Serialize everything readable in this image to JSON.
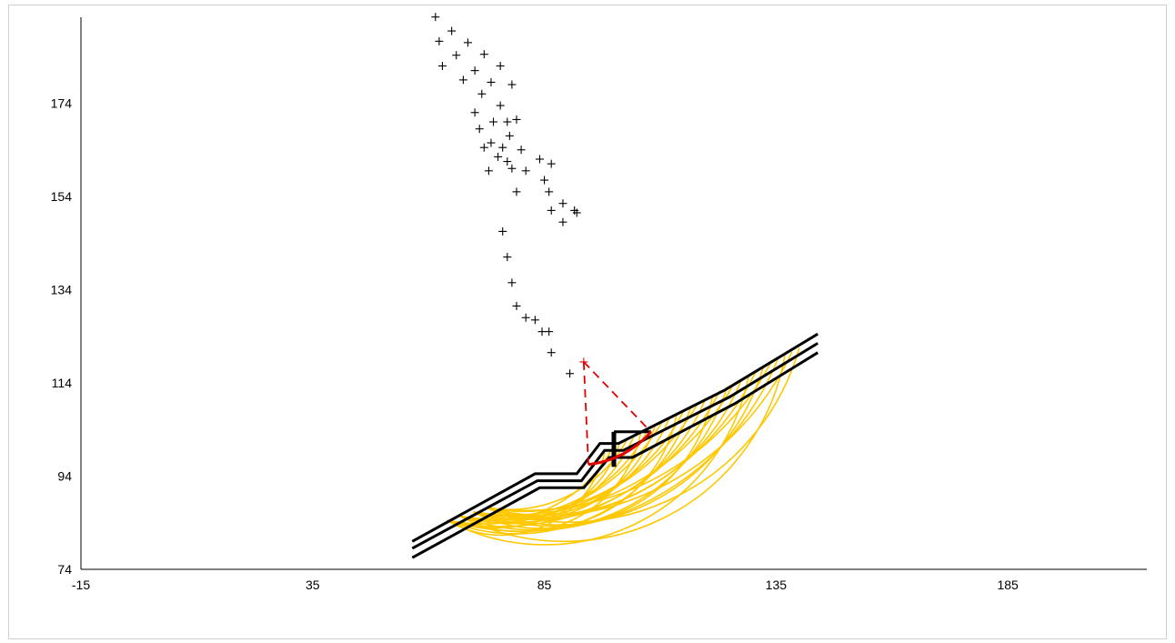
{
  "chart_data": {
    "type": "scatter",
    "title": "",
    "xlabel": "",
    "ylabel": "",
    "xlim": [
      -15,
      215
    ],
    "ylim": [
      74,
      194
    ],
    "x_ticks": [
      -15,
      35,
      85,
      135,
      185
    ],
    "x_tick_labels": [
      "-15",
      "35",
      "85",
      "135",
      "185"
    ],
    "y_ticks": [
      74,
      94,
      114,
      134,
      154,
      174
    ],
    "y_tick_labels": [
      "74",
      "94",
      "114",
      "134",
      "154",
      "174"
    ],
    "grid": false,
    "legend": "none",
    "colors": {
      "axis": "#000000",
      "slope_profile": "#000000",
      "trial_surfaces": "#FFC800",
      "critical_surface": "#E00000",
      "critical_center": "#E00000",
      "grid_centers": "#000000"
    },
    "series": [
      {
        "kind": "grid-centers",
        "points": [
          [
            61.5,
            192.5
          ],
          [
            65,
            189.5
          ],
          [
            68.5,
            187
          ],
          [
            72,
            184.5
          ],
          [
            75.5,
            182
          ],
          [
            62.3,
            187.3
          ],
          [
            66,
            184.3
          ],
          [
            70,
            181
          ],
          [
            73.5,
            178.5
          ],
          [
            78,
            178
          ],
          [
            63,
            182
          ],
          [
            67.5,
            179
          ],
          [
            71.5,
            176
          ],
          [
            75.5,
            173.5
          ],
          [
            79,
            170.5
          ],
          [
            70,
            172
          ],
          [
            74,
            170
          ],
          [
            77.5,
            167
          ],
          [
            71,
            168.5
          ],
          [
            73.5,
            165.5
          ],
          [
            76,
            164.5
          ],
          [
            80,
            164
          ],
          [
            84,
            162
          ],
          [
            86.5,
            161
          ],
          [
            72,
            164.5
          ],
          [
            75,
            162.5
          ],
          [
            77,
            161.5
          ],
          [
            78,
            160
          ],
          [
            81,
            159.5
          ],
          [
            85,
            157.5
          ],
          [
            73,
            159.5
          ],
          [
            86,
            155
          ],
          [
            79,
            155
          ],
          [
            89,
            152.5
          ],
          [
            86.5,
            151
          ],
          [
            91.5,
            151
          ],
          [
            92,
            150.5
          ],
          [
            89,
            148.5
          ],
          [
            76,
            146.5
          ],
          [
            77,
            141
          ],
          [
            78,
            135.5
          ],
          [
            79,
            130.5
          ],
          [
            81,
            128
          ],
          [
            83,
            127.5
          ],
          [
            84.5,
            125
          ],
          [
            86,
            125
          ],
          [
            86.5,
            120.5
          ],
          [
            90.5,
            116
          ],
          [
            77,
            170
          ]
        ]
      },
      {
        "kind": "critical-center",
        "points": [
          [
            93.5,
            118.5
          ]
        ]
      },
      {
        "kind": "slope-profile",
        "name": "",
        "lines": [
          [
            [
              56.5,
              80
            ],
            [
              83,
              94.5
            ],
            [
              92,
              94.5
            ],
            [
              97,
              101
            ],
            [
              101,
              101
            ],
            [
              124,
              112.5
            ],
            [
              144,
              124.5
            ]
          ],
          [
            [
              56.5,
              78.5
            ],
            [
              83.5,
              93
            ],
            [
              93,
              93
            ],
            [
              98,
              99.5
            ],
            [
              102,
              99.5
            ],
            [
              125,
              111
            ],
            [
              144,
              122.5
            ]
          ],
          [
            [
              56.5,
              76.5
            ],
            [
              84,
              91.5
            ],
            [
              93.5,
              91.5
            ],
            [
              99,
              98
            ],
            [
              104,
              98
            ],
            [
              126,
              109.5
            ],
            [
              144,
              120.5
            ]
          ]
        ]
      },
      {
        "kind": "wall",
        "lines": [
          [
            [
              100,
              103.5
            ],
            [
              108,
              103.5
            ]
          ],
          [
            [
              100,
              96
            ],
            [
              100,
              103.5
            ]
          ]
        ]
      }
    ],
    "trial_surfaces": {
      "count": 28,
      "exit_x_range": [
        64,
        75
      ],
      "exit_y_range": [
        84.5,
        88
      ],
      "entry_x_range": [
        98,
        140
      ],
      "entry_y_range": [
        99,
        121.5
      ]
    },
    "critical_surface": {
      "entry": [
        94.5,
        96.5
      ],
      "exit": [
        108,
        103.5
      ],
      "center": [
        93.5,
        118.5
      ]
    }
  }
}
